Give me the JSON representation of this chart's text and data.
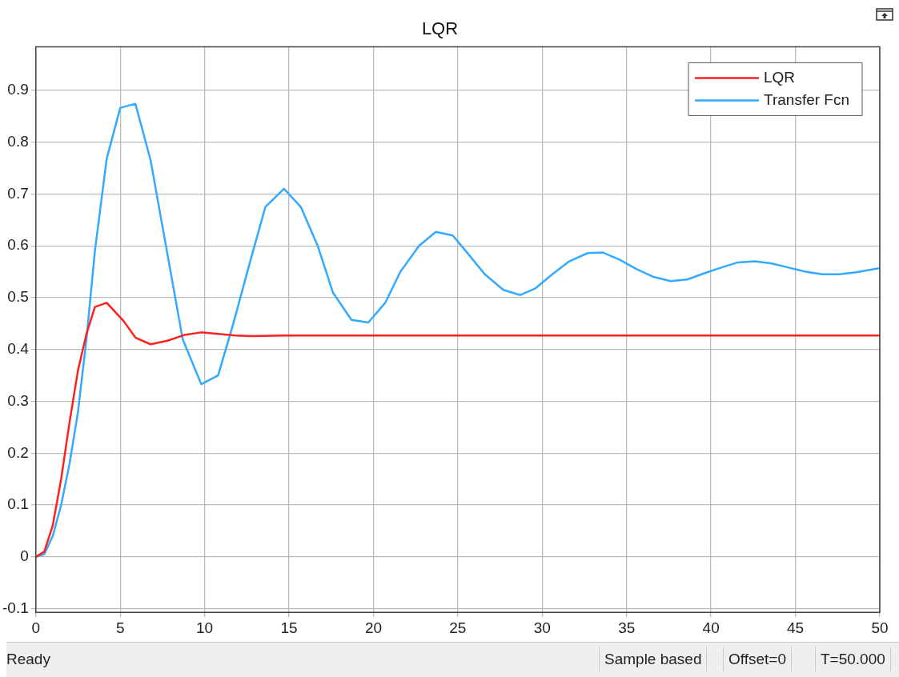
{
  "chart_data": {
    "type": "line",
    "title": "LQR",
    "xlim": [
      0,
      50
    ],
    "xticks": [
      0,
      5,
      10,
      15,
      20,
      25,
      30,
      35,
      40,
      45,
      50
    ],
    "ylim": [
      -0.107,
      0.984
    ],
    "yticks": [
      {
        "value": -0.1,
        "label": "-0.1"
      },
      0,
      0.1,
      0.2,
      0.3,
      0.4,
      0.5,
      0.6,
      0.7,
      0.8,
      0.9
    ],
    "grid": true,
    "legend": "top right",
    "marker": "none",
    "line_style": "solid",
    "series": [
      {
        "name": "LQR",
        "color": "#ff2020",
        "x": [
          0,
          0.5,
          1,
          1.5,
          2,
          2.5,
          3,
          3.5,
          4.2,
          5.2,
          5.9,
          6.8,
          7.8,
          8.8,
          9.8,
          10.8,
          11.8,
          12.8,
          14.8,
          20,
          30,
          40,
          50
        ],
        "values": [
          0,
          0.01,
          0.06,
          0.15,
          0.26,
          0.36,
          0.43,
          0.482,
          0.49,
          0.455,
          0.423,
          0.41,
          0.417,
          0.428,
          0.433,
          0.43,
          0.427,
          0.426,
          0.427,
          0.427,
          0.427,
          0.427,
          0.427
        ]
      },
      {
        "name": "Transfer Fcn",
        "color": "#33aaff",
        "x": [
          0,
          0.5,
          1,
          1.5,
          2,
          2.5,
          3,
          3.5,
          4.2,
          5,
          5.9,
          6.8,
          8.7,
          9.8,
          10.8,
          11.7,
          12.7,
          13.6,
          14.7,
          15.7,
          16.7,
          17.6,
          18.7,
          19.7,
          20.7,
          21.6,
          22.7,
          23.7,
          24.7,
          25.6,
          26.6,
          27.7,
          28.7,
          29.6,
          30.6,
          31.6,
          32.7,
          33.6,
          34.6,
          35.6,
          36.6,
          37.6,
          38.6,
          39.6,
          40.6,
          41.6,
          42.6,
          43.6,
          44.6,
          45.6,
          46.6,
          47.6,
          48.6,
          50
        ],
        "values": [
          0,
          0.005,
          0.04,
          0.1,
          0.18,
          0.28,
          0.42,
          0.59,
          0.768,
          0.866,
          0.874,
          0.765,
          0.42,
          0.333,
          0.35,
          0.45,
          0.57,
          0.675,
          0.71,
          0.675,
          0.6,
          0.51,
          0.457,
          0.452,
          0.49,
          0.55,
          0.6,
          0.627,
          0.62,
          0.585,
          0.545,
          0.515,
          0.505,
          0.518,
          0.545,
          0.57,
          0.586,
          0.587,
          0.573,
          0.555,
          0.54,
          0.532,
          0.535,
          0.547,
          0.558,
          0.568,
          0.57,
          0.566,
          0.558,
          0.55,
          0.545,
          0.545,
          0.549,
          0.557
        ]
      }
    ],
    "annotations": [
      "Ready",
      "Sample based",
      "Offset=0",
      "T=50.000"
    ]
  }
}
